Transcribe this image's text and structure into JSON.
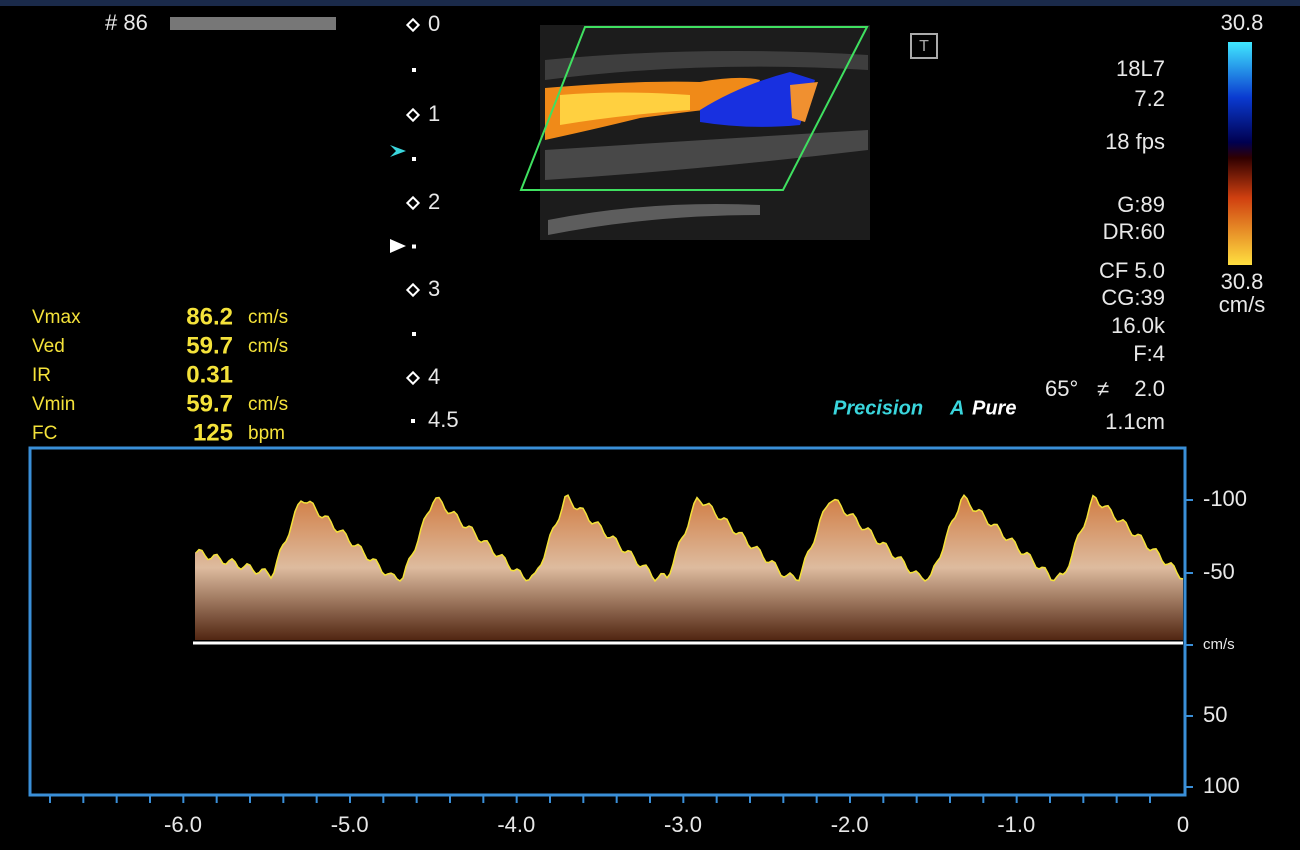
{
  "header": {
    "frame": "# 86",
    "t_icon": "T"
  },
  "depth_scale": [
    "0",
    "1",
    "2",
    "3",
    "4",
    "4.5"
  ],
  "probe": {
    "model": "18L7",
    "frequency": "7.2",
    "frame_rate": "18 fps"
  },
  "settings": [
    "G:89",
    "DR:60",
    "CF 5.0",
    "CG:39",
    "16.0k",
    "F:4"
  ],
  "angle": "65°",
  "gate": "2.0",
  "gate_depth": "1.1cm",
  "color_scale": {
    "top": "30.8",
    "bottom": "30.8",
    "unit": "cm/s"
  },
  "modes": {
    "precision": "Precision",
    "a": "A",
    "pure": "Pure"
  },
  "measurements": [
    {
      "label": "Vmax",
      "value": "86.2",
      "unit": "cm/s"
    },
    {
      "label": "Ved",
      "value": "59.7",
      "unit": "cm/s"
    },
    {
      "label": "IR",
      "value": "0.31",
      "unit": ""
    },
    {
      "label": "Vmin",
      "value": "59.7",
      "unit": "cm/s"
    },
    {
      "label": "FC",
      "value": "125",
      "unit": "bpm"
    }
  ],
  "spectrum": {
    "velocity_ticks": [
      "-100",
      "-50",
      "cm/s",
      "50",
      "100"
    ],
    "time_ticks": [
      "-6.0",
      "-5.0",
      "-4.0",
      "-3.0",
      "-2.0",
      "-1.0",
      "0"
    ]
  }
}
